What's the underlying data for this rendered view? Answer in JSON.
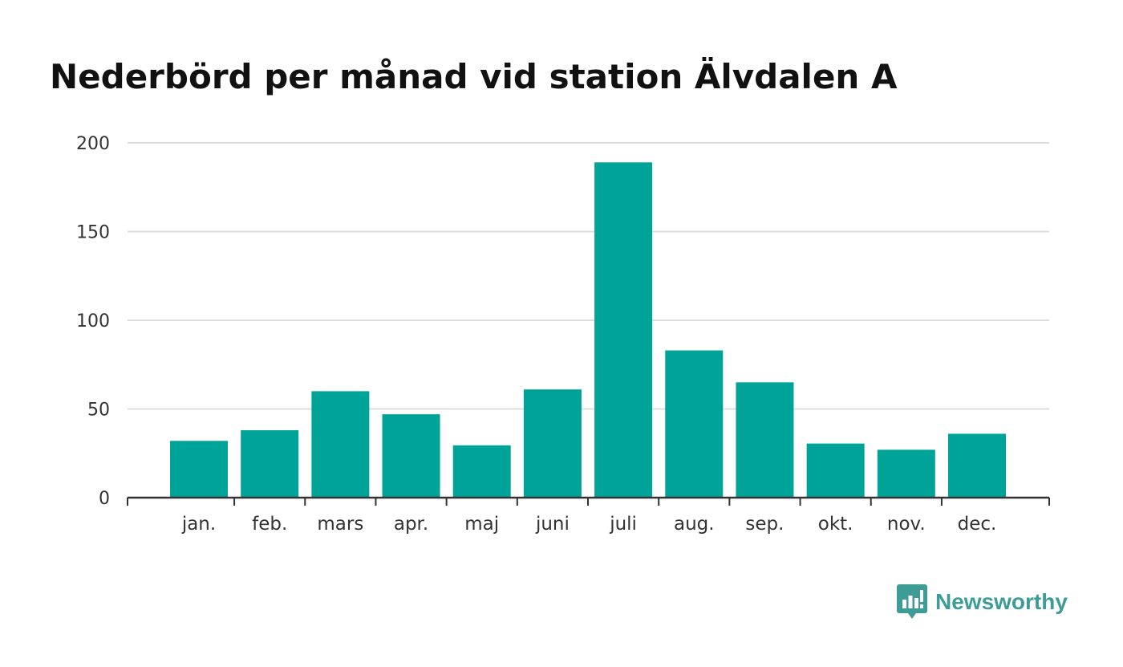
{
  "chart_data": {
    "type": "bar",
    "title": "Nederbörd per månad vid station Älvdalen A",
    "categories": [
      "jan.",
      "feb.",
      "mars",
      "apr.",
      "maj",
      "juni",
      "juli",
      "aug.",
      "sep.",
      "okt.",
      "nov.",
      "dec."
    ],
    "values": [
      32,
      38,
      60,
      47,
      29.5,
      61,
      189,
      83,
      65,
      30.5,
      27,
      36
    ],
    "yticks": [
      0,
      50,
      100,
      150,
      200
    ],
    "ylim": [
      0,
      200
    ],
    "xlabel": "",
    "ylabel": "",
    "grid": true,
    "bar_color": "#00a398",
    "grid_color": "#dddddd",
    "axis_color": "#333333"
  },
  "brand": {
    "name": "Newsworthy",
    "icon": "newsworthy-logo-icon",
    "color": "#3d9c95"
  }
}
